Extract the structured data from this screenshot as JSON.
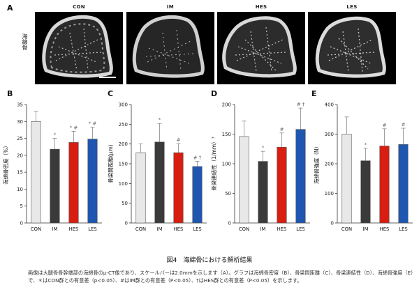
{
  "panel_a": {
    "letter": "A",
    "groups": [
      "CON",
      "IM",
      "HES",
      "LES"
    ],
    "side_label": "海綿骨"
  },
  "figure_title": "図4　海綿骨における解析結果",
  "caption": "画像は大腿骨骨幹端部の海綿骨のμ-CT像であり、スケールバーは2.0mmを示します（A）。グラフは海綿骨密度（B）、骨梁間距離（C）、骨梁連結性（D）、海綿骨強度（E）で、＊はCON群との有意差（p<0.05）、#はIM群との有意差（P<0.05）、†はHES群との有意差（P<0.05）を示します。",
  "colors": {
    "CON": "#e8e8e8",
    "IM": "#3a3a3a",
    "HES": "#d81e10",
    "LES": "#1f57b0"
  },
  "chart_data": [
    {
      "letter": "B",
      "type": "bar",
      "categories": [
        "CON",
        "IM",
        "HES",
        "LES"
      ],
      "values": [
        30,
        21.8,
        23.8,
        24.8
      ],
      "errors": [
        3,
        3.2,
        3.3,
        3.5
      ],
      "significance": [
        "",
        "*",
        "* #",
        "* #"
      ],
      "ylabel": "海綿骨密度（%）",
      "ylim": [
        0,
        35
      ],
      "yticks": [
        0,
        5,
        10,
        15,
        20,
        25,
        30,
        35
      ],
      "ytick_labels": [
        "0",
        "5",
        "10",
        "15",
        "20",
        "25",
        "30",
        "35"
      ],
      "grid": false
    },
    {
      "letter": "C",
      "type": "bar",
      "categories": [
        "CON",
        "IM",
        "HES",
        "LES"
      ],
      "values": [
        178,
        205,
        178,
        143
      ],
      "errors": [
        22,
        47,
        23,
        13
      ],
      "significance": [
        "",
        "*",
        "#",
        "# †"
      ],
      "ylabel": "骨梁間距離(μm)",
      "ylim": [
        0,
        300
      ],
      "yticks": [
        0,
        50,
        100,
        150,
        200,
        250,
        300
      ],
      "ytick_labels": [
        "0",
        "50",
        "100",
        "150",
        "200",
        "250",
        "300"
      ],
      "grid": false
    },
    {
      "letter": "D",
      "type": "bar",
      "categories": [
        "CON",
        "IM",
        "HES",
        "LES"
      ],
      "values": [
        146,
        104,
        128,
        158
      ],
      "errors": [
        26,
        17,
        24,
        36
      ],
      "significance": [
        "",
        "*",
        "#",
        "# †"
      ],
      "ylabel": "骨梁連結性（1/mm）³",
      "ylim": [
        0,
        200
      ],
      "yticks": [
        0,
        50,
        100,
        150,
        200
      ],
      "ytick_labels": [
        "0",
        "50",
        "100",
        "150",
        "200"
      ],
      "grid": false
    },
    {
      "letter": "E",
      "type": "bar",
      "categories": [
        "CON",
        "IM",
        "HES",
        "LES"
      ],
      "values": [
        300,
        210,
        260,
        265
      ],
      "errors": [
        58,
        42,
        58,
        55
      ],
      "significance": [
        "",
        "*",
        "#",
        "#"
      ],
      "ylabel": "海綿骨強度（N）",
      "ylim": [
        0,
        400
      ],
      "yticks": [
        0,
        100,
        200,
        300,
        400
      ],
      "ytick_labels": [
        "0",
        "100",
        "200",
        "300",
        "400"
      ],
      "grid": false
    }
  ]
}
